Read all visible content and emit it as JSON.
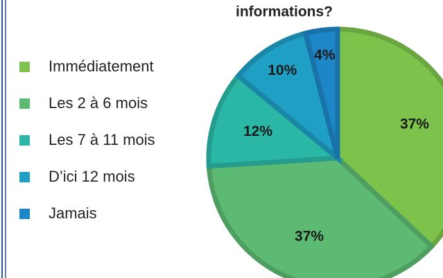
{
  "chart_data": {
    "type": "pie",
    "title": "informations?",
    "categories": [
      "Immédiatement",
      "Les 2 à 6 mois",
      "Les 7 à 11 mois",
      "D’ici 12 mois",
      "Jamais"
    ],
    "values": [
      37,
      37,
      12,
      10,
      4
    ],
    "value_labels": [
      "37%",
      "37%",
      "12%",
      "10%",
      "4%"
    ],
    "colors": [
      "#7dc24b",
      "#5dba72",
      "#2bb7a6",
      "#1f9fc3",
      "#1d86c6"
    ],
    "legend": "left"
  }
}
